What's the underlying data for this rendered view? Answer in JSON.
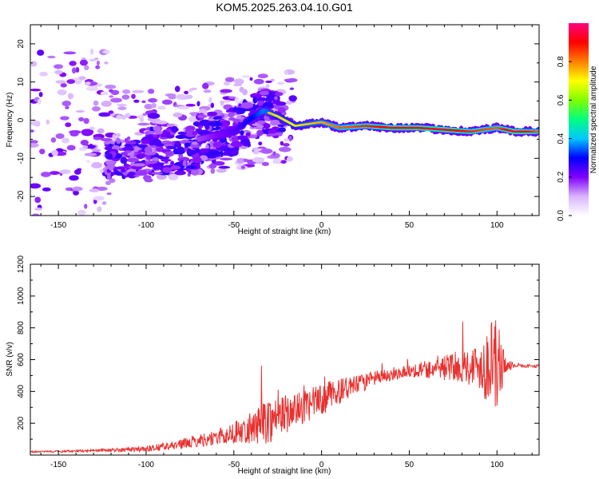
{
  "title": "KOM5.2025.263.04.10.G01",
  "chart_data": [
    {
      "type": "heatmap",
      "name": "spectrogram",
      "xlabel": "Height of straight line (km)",
      "ylabel": "Frequency (Hz)",
      "xlim": [
        -166,
        124
      ],
      "ylim": [
        -25,
        25
      ],
      "xticks": [
        -150,
        -100,
        -50,
        0,
        50,
        100
      ],
      "yticks": [
        -20,
        -10,
        0,
        10,
        20
      ],
      "colorbar": {
        "label": "Normalized spectral amplitude",
        "range": [
          0,
          1
        ],
        "ticks": [
          0.0,
          0.2,
          0.4,
          0.6,
          0.8
        ],
        "colormap": [
          "#ffffff",
          "#d8b4ff",
          "#8000ff",
          "#0000ff",
          "#00c8ff",
          "#00ff80",
          "#80ff00",
          "#ffff00",
          "#ff8000",
          "#ff0000",
          "#ff0080"
        ]
      },
      "ridge": {
        "description": "dominant frequency track",
        "x": [
          -70,
          -50,
          -40,
          -33,
          -25,
          -15,
          0,
          10,
          25,
          40,
          55,
          70,
          85,
          100,
          110,
          124
        ],
        "frequency": [
          -5,
          -3,
          0.5,
          2.5,
          1,
          -1.5,
          -0.5,
          -2,
          -1.5,
          -2,
          -2,
          -2.5,
          -3,
          -2,
          -3,
          -3
        ],
        "amplitude": [
          0.25,
          0.35,
          0.45,
          0.55,
          0.5,
          0.5,
          0.55,
          0.6,
          0.65,
          0.7,
          0.7,
          0.72,
          0.65,
          0.6,
          0.75,
          0.6
        ]
      }
    },
    {
      "type": "line",
      "name": "snr",
      "xlabel": "Height of straight line (km)",
      "ylabel": "SNR (v/v)",
      "xlim": [
        -166,
        124
      ],
      "ylim": [
        0,
        1200
      ],
      "xticks": [
        -150,
        -100,
        -50,
        0,
        50,
        100
      ],
      "yticks": [
        200,
        400,
        600,
        800,
        1000,
        1200
      ],
      "series": [
        {
          "name": "SNR",
          "color": "#e8312f",
          "envelope_x": [
            -166,
            -140,
            -120,
            -100,
            -80,
            -70,
            -60,
            -50,
            -40,
            -30,
            -20,
            -10,
            0,
            10,
            20,
            30,
            40,
            50,
            60,
            70,
            80,
            90,
            95,
            100,
            105,
            110,
            124
          ],
          "envelope_y": [
            20,
            25,
            30,
            40,
            70,
            90,
            110,
            140,
            170,
            220,
            260,
            300,
            350,
            400,
            440,
            480,
            510,
            530,
            540,
            550,
            560,
            560,
            560,
            560,
            565,
            560,
            560
          ],
          "noise_amplitude": [
            5,
            8,
            10,
            20,
            30,
            40,
            50,
            70,
            100,
            150,
            120,
            100,
            100,
            80,
            60,
            50,
            40,
            40,
            60,
            80,
            100,
            150,
            250,
            300,
            50,
            10,
            10
          ]
        }
      ]
    }
  ]
}
